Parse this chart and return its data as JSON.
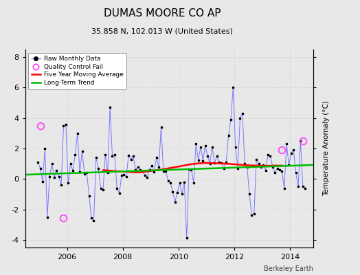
{
  "title": "DUMAS MOORE CO AP",
  "subtitle": "35.858 N, 102.013 W (United States)",
  "ylabel": "Temperature Anomaly (°C)",
  "ylim": [
    -4.5,
    8.5
  ],
  "xlim": [
    2004.5,
    2014.83
  ],
  "xticks": [
    2006,
    2008,
    2010,
    2012,
    2014
  ],
  "yticks": [
    -4,
    -2,
    0,
    2,
    4,
    6,
    8
  ],
  "background_color": "#e8e8e8",
  "plot_bg_color": "#e8e8e8",
  "watermark": "Berkeley Earth",
  "raw_data": {
    "x": [
      2004.958,
      2005.042,
      2005.125,
      2005.208,
      2005.292,
      2005.375,
      2005.458,
      2005.542,
      2005.625,
      2005.708,
      2005.792,
      2005.875,
      2005.958,
      2006.042,
      2006.125,
      2006.208,
      2006.292,
      2006.375,
      2006.458,
      2006.542,
      2006.625,
      2006.708,
      2006.792,
      2006.875,
      2006.958,
      2007.042,
      2007.125,
      2007.208,
      2007.292,
      2007.375,
      2007.458,
      2007.542,
      2007.625,
      2007.708,
      2007.792,
      2007.875,
      2007.958,
      2008.042,
      2008.125,
      2008.208,
      2008.292,
      2008.375,
      2008.458,
      2008.542,
      2008.625,
      2008.708,
      2008.792,
      2008.875,
      2008.958,
      2009.042,
      2009.125,
      2009.208,
      2009.292,
      2009.375,
      2009.458,
      2009.542,
      2009.625,
      2009.708,
      2009.792,
      2009.875,
      2009.958,
      2010.042,
      2010.125,
      2010.208,
      2010.292,
      2010.375,
      2010.458,
      2010.542,
      2010.625,
      2010.708,
      2010.792,
      2010.875,
      2010.958,
      2011.042,
      2011.125,
      2011.208,
      2011.292,
      2011.375,
      2011.458,
      2011.542,
      2011.625,
      2011.708,
      2011.792,
      2011.875,
      2011.958,
      2012.042,
      2012.125,
      2012.208,
      2012.292,
      2012.375,
      2012.458,
      2012.542,
      2012.625,
      2012.708,
      2012.792,
      2012.875,
      2012.958,
      2013.042,
      2013.125,
      2013.208,
      2013.292,
      2013.375,
      2013.458,
      2013.542,
      2013.625,
      2013.708,
      2013.792,
      2013.875,
      2013.958,
      2014.042,
      2014.125,
      2014.208,
      2014.292,
      2014.375,
      2014.458,
      2014.542
    ],
    "y": [
      1.1,
      0.7,
      -0.15,
      2.0,
      -2.5,
      0.15,
      1.0,
      0.1,
      0.55,
      0.15,
      -0.4,
      3.5,
      3.6,
      -0.25,
      1.0,
      0.55,
      1.6,
      3.0,
      0.45,
      1.8,
      0.35,
      0.4,
      -1.1,
      -2.55,
      -2.75,
      1.4,
      0.7,
      -0.6,
      -0.7,
      1.6,
      0.4,
      4.7,
      1.5,
      1.6,
      -0.6,
      -0.95,
      0.25,
      0.3,
      0.15,
      1.55,
      1.3,
      1.5,
      0.6,
      0.8,
      0.6,
      0.5,
      0.25,
      0.1,
      0.6,
      0.85,
      0.45,
      1.4,
      0.8,
      3.4,
      0.5,
      0.5,
      -0.1,
      -0.25,
      -0.85,
      -1.5,
      -0.9,
      -0.25,
      -1.0,
      -0.2,
      -3.85,
      0.65,
      0.6,
      -0.25,
      2.3,
      1.25,
      2.1,
      1.2,
      2.2,
      1.5,
      1.0,
      2.1,
      1.05,
      1.5,
      1.1,
      1.05,
      0.7,
      1.1,
      2.85,
      3.9,
      6.0,
      2.1,
      0.7,
      4.0,
      4.3,
      1.0,
      0.8,
      -1.0,
      -2.4,
      -2.3,
      1.3,
      1.0,
      0.8,
      0.9,
      0.55,
      1.6,
      1.5,
      0.8,
      0.4,
      0.7,
      0.6,
      0.5,
      -0.6,
      2.3,
      0.9,
      1.7,
      1.9,
      0.4,
      -0.5,
      2.5,
      -0.5,
      -0.6
    ]
  },
  "qc_fail": {
    "x": [
      2005.042,
      2005.875,
      2013.708,
      2014.458
    ],
    "y": [
      3.5,
      -2.55,
      1.9,
      2.5
    ]
  },
  "moving_avg": {
    "x": [
      2007.3,
      2007.5,
      2007.7,
      2007.9,
      2008.1,
      2008.3,
      2008.5,
      2008.7,
      2008.9,
      2009.1,
      2009.3,
      2009.5,
      2009.7,
      2009.9,
      2010.1,
      2010.3,
      2010.5,
      2010.7,
      2010.9,
      2011.1,
      2011.3,
      2011.5,
      2011.7,
      2011.9,
      2012.1,
      2012.3,
      2012.5,
      2012.7,
      2012.9,
      2013.1,
      2013.3,
      2013.5,
      2013.7
    ],
    "y": [
      0.58,
      0.55,
      0.52,
      0.5,
      0.48,
      0.45,
      0.43,
      0.45,
      0.5,
      0.55,
      0.6,
      0.65,
      0.72,
      0.78,
      0.85,
      0.92,
      0.98,
      1.02,
      1.05,
      1.05,
      1.04,
      1.02,
      1.0,
      0.98,
      0.95,
      0.92,
      0.9,
      0.88,
      0.87,
      0.86,
      0.87,
      0.88,
      0.88
    ]
  },
  "trend": {
    "x": [
      2004.5,
      2014.83
    ],
    "y": [
      0.28,
      0.92
    ]
  },
  "colors": {
    "raw_line": "#7777ff",
    "raw_marker": "#000000",
    "qc_fail": "#ff44ff",
    "moving_avg": "#ff0000",
    "trend": "#00bb00",
    "grid": "#cccccc"
  },
  "title_fontsize": 11,
  "subtitle_fontsize": 8,
  "tick_fontsize": 8,
  "ylabel_fontsize": 7.5
}
